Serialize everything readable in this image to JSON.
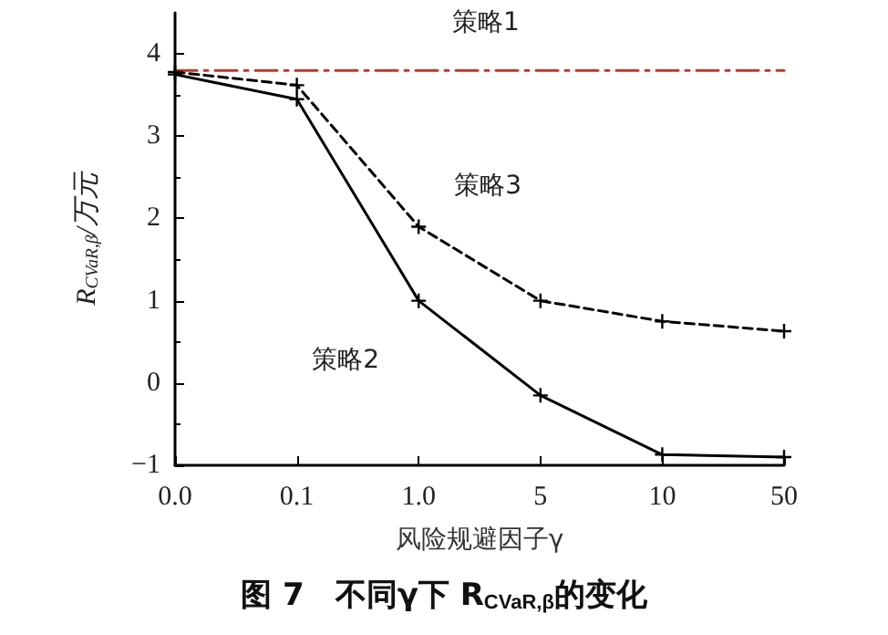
{
  "chart_data": {
    "type": "line",
    "ylabel": "R$_{CVaR,β}$/万元",
    "xlabel": "风险规避因子γ",
    "annotations": [
      "图 7　不同γ下 R$_{CVaR,β}$的变化"
    ],
    "categories": [
      "0.0",
      "0.1",
      "1.0",
      "5",
      "10",
      "50"
    ],
    "ylim": [
      -1,
      4.5
    ],
    "yticks": [
      -1,
      0,
      1,
      2,
      3,
      4
    ],
    "grid": false,
    "legend": false,
    "series": [
      {
        "name": "策略1",
        "color": "#c0392b",
        "line_style": "dashdot",
        "marker": "none",
        "values": [
          3.8,
          3.8,
          3.8,
          3.8,
          3.8,
          3.8
        ]
      },
      {
        "name": "策略2",
        "color": "#000000",
        "line_style": "solid",
        "marker": "cross",
        "values": [
          3.75,
          3.45,
          1.0,
          -0.15,
          -0.87,
          -0.9
        ]
      },
      {
        "name": "策略3",
        "color": "#000000",
        "line_style": "dashed",
        "marker": "cross",
        "values": [
          3.78,
          3.62,
          1.9,
          1.0,
          0.75,
          0.63
        ]
      }
    ]
  }
}
